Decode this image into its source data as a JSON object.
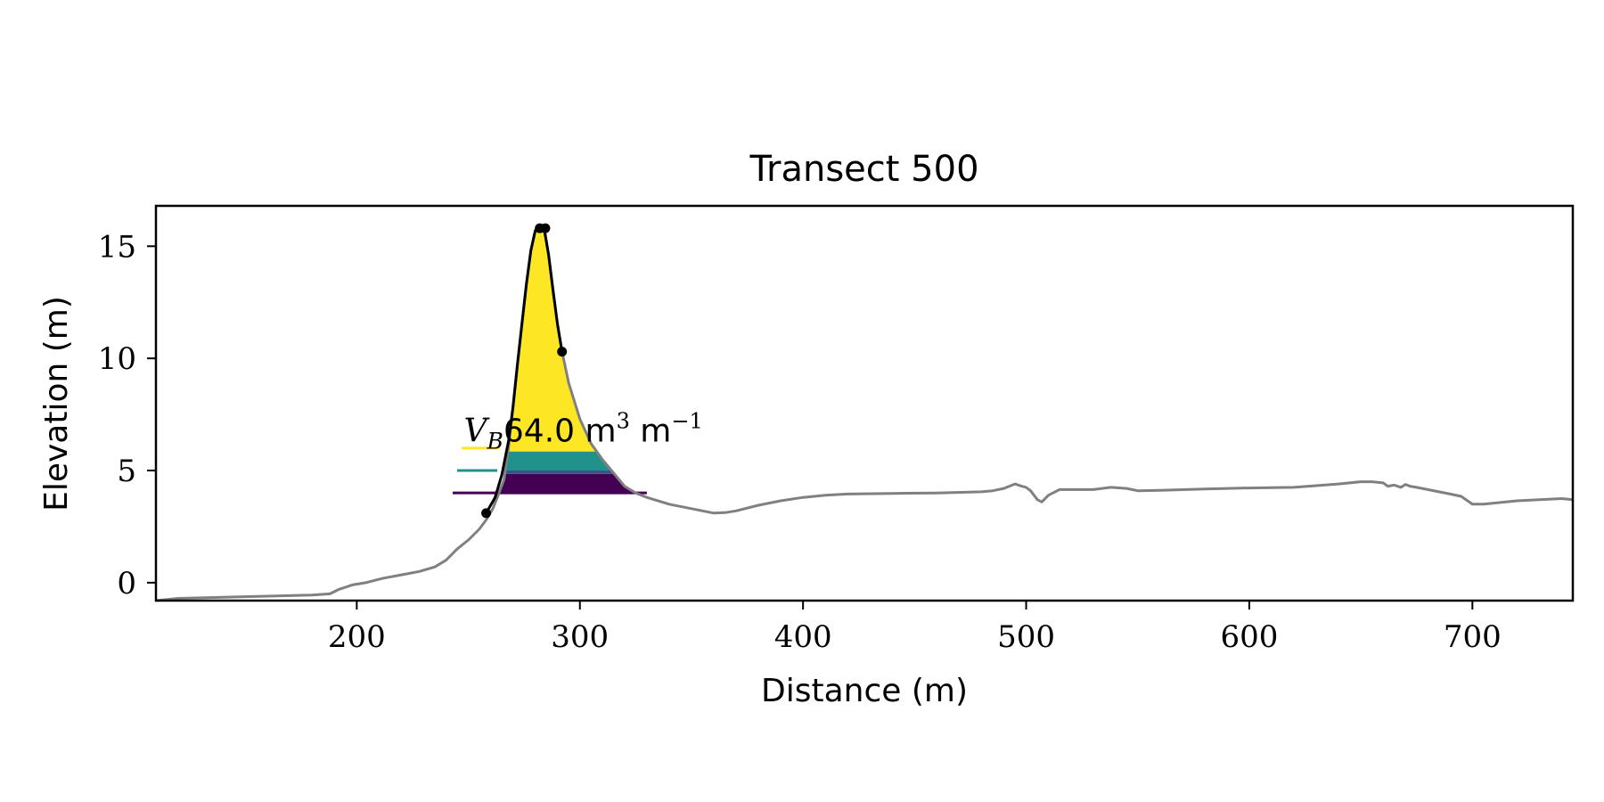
{
  "chart_data": {
    "type": "line",
    "title": "Transect 500",
    "xlabel": "Distance (m)",
    "ylabel": "Elevation (m)",
    "xlim": [
      110,
      745
    ],
    "ylim": [
      -0.8,
      16.8
    ],
    "grid": false,
    "x_ticks": [
      {
        "value": 200,
        "label": "200"
      },
      {
        "value": 300,
        "label": "300"
      },
      {
        "value": 400,
        "label": "400"
      },
      {
        "value": 500,
        "label": "500"
      },
      {
        "value": 600,
        "label": "600"
      },
      {
        "value": 700,
        "label": "700"
      }
    ],
    "y_ticks": [
      {
        "value": 0,
        "label": "0"
      },
      {
        "value": 5,
        "label": "5"
      },
      {
        "value": 10,
        "label": "10"
      },
      {
        "value": 15,
        "label": "15"
      }
    ],
    "profile": {
      "color": "#808080",
      "x": [
        110,
        120,
        140,
        160,
        180,
        188,
        192,
        198,
        204,
        208,
        212,
        220,
        228,
        235,
        240,
        245,
        250,
        255,
        258,
        261,
        263,
        266,
        268,
        270,
        272,
        274,
        276,
        278,
        280,
        282,
        284,
        286,
        288,
        290,
        292,
        295,
        300,
        305,
        310,
        315,
        320,
        325,
        330,
        340,
        350,
        360,
        365,
        370,
        380,
        390,
        400,
        410,
        420,
        440,
        460,
        480,
        485,
        490,
        495,
        498,
        500,
        502,
        505,
        507,
        510,
        515,
        520,
        530,
        538,
        545,
        550,
        560,
        580,
        600,
        620,
        640,
        650,
        655,
        660,
        662,
        665,
        668,
        670,
        672,
        675,
        680,
        690,
        695,
        700,
        705,
        710,
        720,
        730,
        740,
        745
      ],
      "y": [
        -0.8,
        -0.7,
        -0.65,
        -0.6,
        -0.55,
        -0.5,
        -0.3,
        -0.1,
        0.0,
        0.1,
        0.2,
        0.35,
        0.5,
        0.7,
        1.0,
        1.5,
        1.9,
        2.4,
        2.8,
        3.3,
        3.8,
        4.6,
        6.0,
        7.8,
        9.7,
        11.5,
        13.3,
        14.8,
        15.7,
        15.9,
        15.7,
        14.6,
        13.0,
        11.5,
        10.3,
        8.9,
        7.3,
        6.2,
        5.5,
        4.9,
        4.3,
        4.0,
        3.8,
        3.5,
        3.3,
        3.1,
        3.12,
        3.2,
        3.45,
        3.65,
        3.8,
        3.9,
        3.95,
        3.98,
        4.0,
        4.05,
        4.1,
        4.2,
        4.4,
        4.3,
        4.25,
        4.1,
        3.7,
        3.6,
        3.9,
        4.15,
        4.15,
        4.15,
        4.25,
        4.2,
        4.1,
        4.12,
        4.18,
        4.22,
        4.25,
        4.4,
        4.5,
        4.5,
        4.45,
        4.3,
        4.35,
        4.25,
        4.38,
        4.3,
        4.25,
        4.15,
        3.95,
        3.85,
        3.5,
        3.5,
        3.55,
        3.65,
        3.7,
        3.75,
        3.7
      ]
    },
    "fill_bands": [
      {
        "name": "band-1",
        "color": "#440154",
        "ymin": 4.0,
        "ymax": 4.85
      },
      {
        "name": "band-2",
        "color": "#3b528b",
        "ymin": 4.85,
        "ymax": 5.0
      },
      {
        "name": "band-3",
        "color": "#21918c",
        "ymin": 5.0,
        "ymax": 5.85
      },
      {
        "name": "band-4",
        "color": "#fde725",
        "ymin": 5.85,
        "ymax": 15.9
      }
    ],
    "level_lines": [
      {
        "y": 4.0,
        "x": [
          243,
          330
        ],
        "color": "#440154"
      },
      {
        "y": 5.0,
        "x": [
          245,
          263
        ],
        "color": "#21918c"
      },
      {
        "y": 6.0,
        "x": [
          247,
          264
        ],
        "color": "#fde725"
      }
    ],
    "dune_outline": {
      "color": "#000000",
      "x": [
        258,
        262,
        265,
        268,
        270,
        272,
        274,
        276,
        278,
        280,
        282,
        284,
        286,
        288,
        290,
        292
      ],
      "y": [
        3.1,
        3.8,
        4.8,
        6.3,
        7.8,
        9.7,
        11.5,
        13.3,
        14.8,
        15.7,
        15.8,
        15.8,
        14.6,
        13.0,
        11.5,
        10.3
      ]
    },
    "markers": [
      {
        "x": 258,
        "y": 3.1
      },
      {
        "x": 282,
        "y": 15.8
      },
      {
        "x": 284.5,
        "y": 15.8
      },
      {
        "x": 292,
        "y": 10.3
      }
    ],
    "annotation": {
      "x": 248,
      "y": 6.3,
      "symbol": "V",
      "subscript": "B",
      "value_text": "64.0 m",
      "exp1": "3",
      "mid_text": " m",
      "exp2": "−1"
    }
  }
}
